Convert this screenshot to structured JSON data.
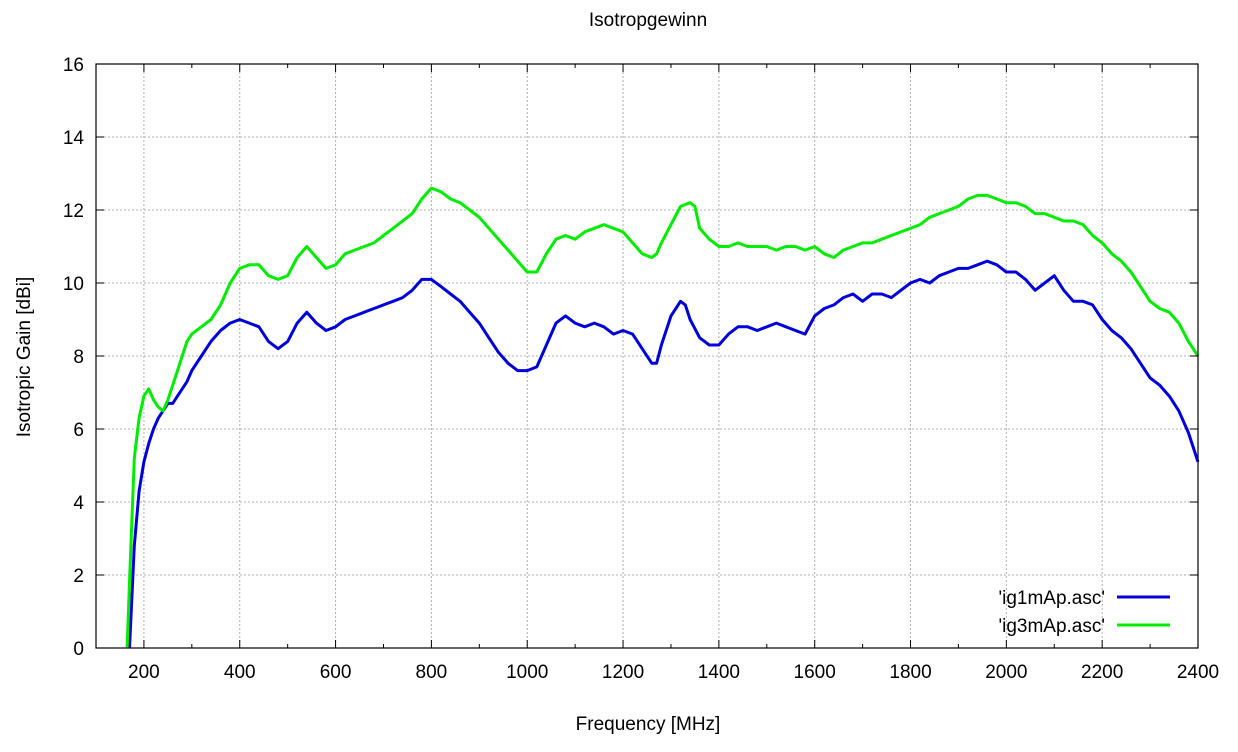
{
  "chart_data": {
    "type": "line",
    "title": "Isotropgewinn",
    "xlabel": "Frequency [MHz]",
    "ylabel": "Isotropic Gain [dBi]",
    "xlim": [
      100,
      2400
    ],
    "ylim": [
      0,
      16
    ],
    "xticks": [
      200,
      400,
      600,
      800,
      1000,
      1200,
      1400,
      1600,
      1800,
      2000,
      2200,
      2400
    ],
    "yticks": [
      0,
      2,
      4,
      6,
      8,
      10,
      12,
      14,
      16
    ],
    "grid": true,
    "legend_position": "bottom-right",
    "series": [
      {
        "name": "'ig1mAp.asc'",
        "color": "#0000dd",
        "x": [
          170,
          180,
          190,
          200,
          210,
          220,
          230,
          240,
          250,
          260,
          270,
          280,
          290,
          300,
          320,
          340,
          360,
          380,
          400,
          420,
          440,
          460,
          480,
          500,
          520,
          540,
          560,
          580,
          600,
          620,
          640,
          660,
          680,
          700,
          720,
          740,
          760,
          780,
          800,
          820,
          840,
          860,
          880,
          900,
          920,
          940,
          960,
          980,
          1000,
          1020,
          1040,
          1060,
          1080,
          1100,
          1120,
          1140,
          1160,
          1180,
          1200,
          1220,
          1240,
          1260,
          1270,
          1280,
          1300,
          1320,
          1330,
          1340,
          1360,
          1380,
          1400,
          1420,
          1440,
          1460,
          1480,
          1500,
          1520,
          1540,
          1560,
          1580,
          1600,
          1620,
          1640,
          1660,
          1680,
          1700,
          1720,
          1740,
          1760,
          1780,
          1800,
          1820,
          1840,
          1860,
          1880,
          1900,
          1920,
          1940,
          1960,
          1980,
          2000,
          2020,
          2040,
          2060,
          2080,
          2100,
          2120,
          2140,
          2160,
          2180,
          2200,
          2220,
          2240,
          2260,
          2280,
          2300,
          2320,
          2340,
          2360,
          2380,
          2400
        ],
        "y": [
          0,
          2.8,
          4.3,
          5.1,
          5.6,
          6.0,
          6.3,
          6.5,
          6.7,
          6.7,
          6.9,
          7.1,
          7.3,
          7.6,
          8.0,
          8.4,
          8.7,
          8.9,
          9.0,
          8.9,
          8.8,
          8.4,
          8.2,
          8.4,
          8.9,
          9.2,
          8.9,
          8.7,
          8.8,
          9.0,
          9.1,
          9.2,
          9.3,
          9.4,
          9.5,
          9.6,
          9.8,
          10.1,
          10.1,
          9.9,
          9.7,
          9.5,
          9.2,
          8.9,
          8.5,
          8.1,
          7.8,
          7.6,
          7.6,
          7.7,
          8.3,
          8.9,
          9.1,
          8.9,
          8.8,
          8.9,
          8.8,
          8.6,
          8.7,
          8.6,
          8.2,
          7.8,
          7.8,
          8.3,
          9.1,
          9.5,
          9.4,
          9.0,
          8.5,
          8.3,
          8.3,
          8.6,
          8.8,
          8.8,
          8.7,
          8.8,
          8.9,
          8.8,
          8.7,
          8.6,
          9.1,
          9.3,
          9.4,
          9.6,
          9.7,
          9.5,
          9.7,
          9.7,
          9.6,
          9.8,
          10.0,
          10.1,
          10.0,
          10.2,
          10.3,
          10.4,
          10.4,
          10.5,
          10.6,
          10.5,
          10.3,
          10.3,
          10.1,
          9.8,
          10.0,
          10.2,
          9.8,
          9.5,
          9.5,
          9.4,
          9.0,
          8.7,
          8.5,
          8.2,
          7.8,
          7.4,
          7.2,
          6.9,
          6.5,
          5.9,
          5.1
        ]
      },
      {
        "name": "'ig3mAp.asc'",
        "color": "#00ee00",
        "x": [
          165,
          170,
          180,
          190,
          200,
          210,
          220,
          230,
          240,
          250,
          260,
          270,
          280,
          290,
          300,
          320,
          340,
          360,
          380,
          400,
          420,
          440,
          460,
          480,
          500,
          520,
          540,
          560,
          580,
          600,
          620,
          640,
          660,
          680,
          700,
          720,
          740,
          760,
          780,
          800,
          820,
          840,
          860,
          880,
          900,
          920,
          940,
          960,
          980,
          1000,
          1020,
          1040,
          1060,
          1080,
          1100,
          1120,
          1140,
          1160,
          1180,
          1200,
          1220,
          1240,
          1260,
          1270,
          1280,
          1300,
          1320,
          1340,
          1350,
          1360,
          1380,
          1400,
          1420,
          1440,
          1460,
          1480,
          1500,
          1520,
          1540,
          1560,
          1580,
          1600,
          1620,
          1640,
          1660,
          1680,
          1700,
          1720,
          1740,
          1760,
          1780,
          1800,
          1820,
          1840,
          1860,
          1880,
          1900,
          1920,
          1940,
          1960,
          1980,
          2000,
          2020,
          2040,
          2060,
          2080,
          2100,
          2120,
          2140,
          2160,
          2180,
          2200,
          2220,
          2240,
          2260,
          2280,
          2300,
          2320,
          2340,
          2360,
          2380,
          2400
        ],
        "y": [
          0,
          1.8,
          5.2,
          6.3,
          6.9,
          7.1,
          6.8,
          6.6,
          6.5,
          6.8,
          7.2,
          7.6,
          8.0,
          8.4,
          8.6,
          8.8,
          9.0,
          9.4,
          10.0,
          10.4,
          10.5,
          10.5,
          10.2,
          10.1,
          10.2,
          10.7,
          11.0,
          10.7,
          10.4,
          10.5,
          10.8,
          10.9,
          11.0,
          11.1,
          11.3,
          11.5,
          11.7,
          11.9,
          12.3,
          12.6,
          12.5,
          12.3,
          12.2,
          12.0,
          11.8,
          11.5,
          11.2,
          10.9,
          10.6,
          10.3,
          10.3,
          10.8,
          11.2,
          11.3,
          11.2,
          11.4,
          11.5,
          11.6,
          11.5,
          11.4,
          11.1,
          10.8,
          10.7,
          10.8,
          11.1,
          11.6,
          12.1,
          12.2,
          12.1,
          11.5,
          11.2,
          11.0,
          11.0,
          11.1,
          11.0,
          11.0,
          11.0,
          10.9,
          11.0,
          11.0,
          10.9,
          11.0,
          10.8,
          10.7,
          10.9,
          11.0,
          11.1,
          11.1,
          11.2,
          11.3,
          11.4,
          11.5,
          11.6,
          11.8,
          11.9,
          12.0,
          12.1,
          12.3,
          12.4,
          12.4,
          12.3,
          12.2,
          12.2,
          12.1,
          11.9,
          11.9,
          11.8,
          11.7,
          11.7,
          11.6,
          11.3,
          11.1,
          10.8,
          10.6,
          10.3,
          9.9,
          9.5,
          9.3,
          9.2,
          8.9,
          8.4,
          8.0
        ]
      }
    ]
  }
}
